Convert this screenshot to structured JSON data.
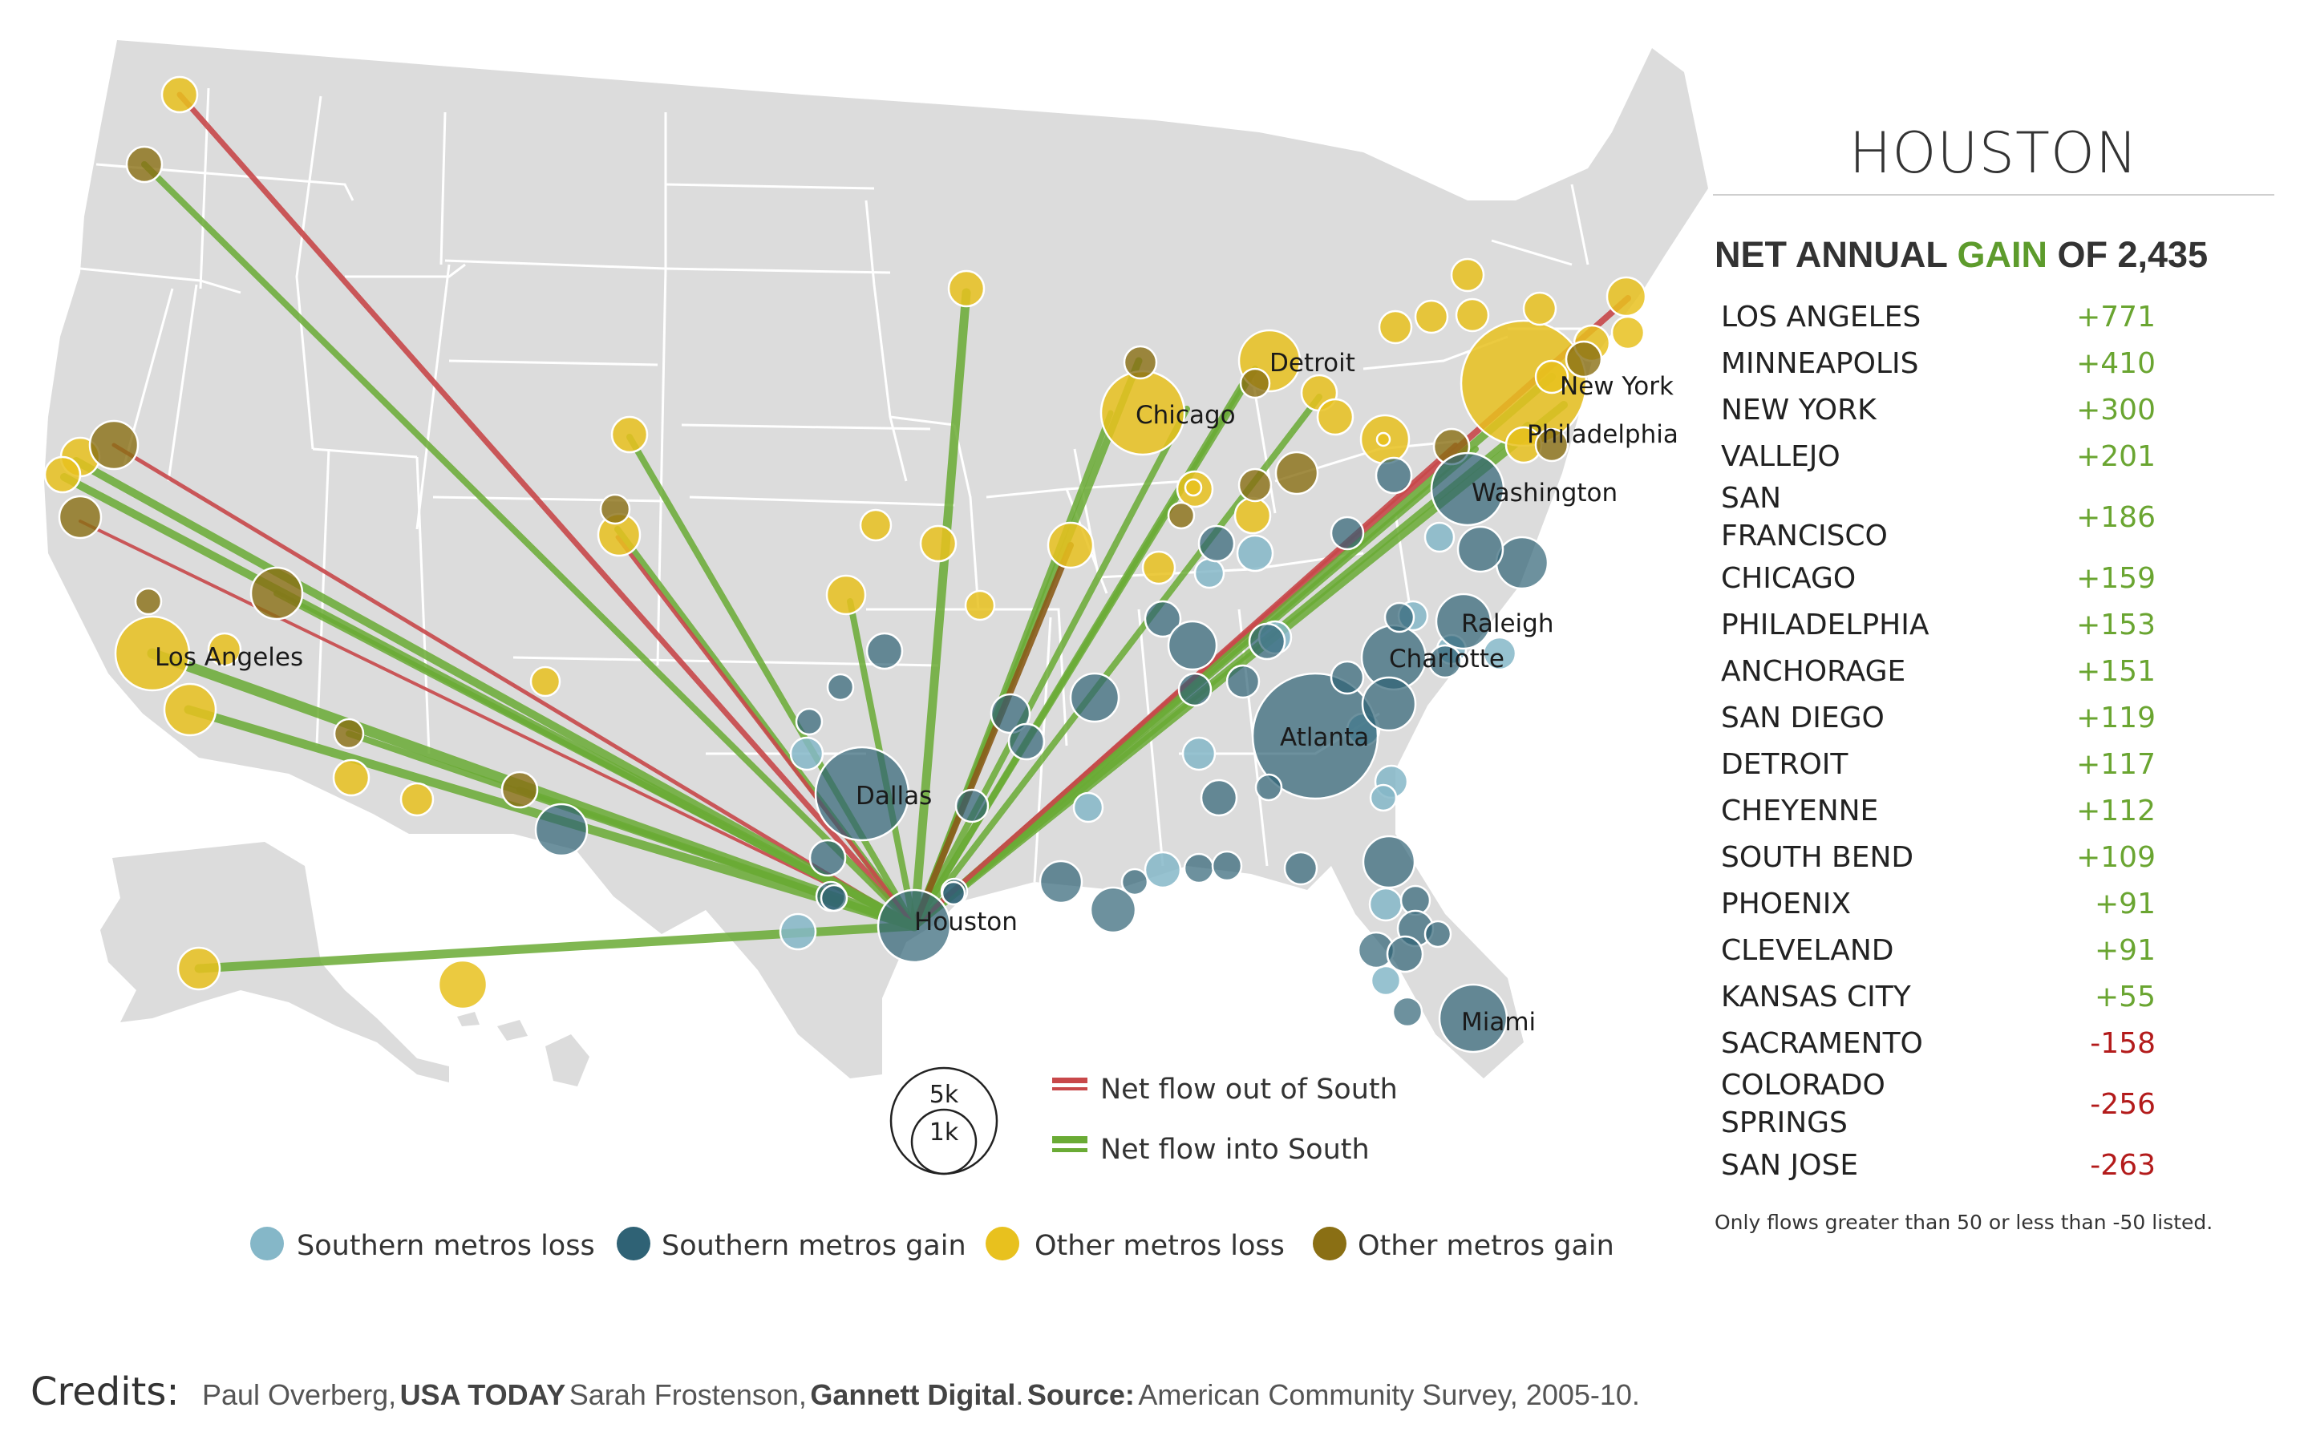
{
  "panel": {
    "title": "HOUSTON",
    "heading_prefix": "NET ANNUAL ",
    "heading_gain": "GAIN",
    "heading_suffix": " OF 2,435",
    "rows": [
      {
        "name": "LOS ANGELES",
        "value": "+771"
      },
      {
        "name": "MINNEAPOLIS",
        "value": "+410"
      },
      {
        "name": "NEW YORK",
        "value": "+300"
      },
      {
        "name": "VALLEJO",
        "value": "+201"
      },
      {
        "name": "SAN FRANCISCO",
        "value": "+186"
      },
      {
        "name": "CHICAGO",
        "value": "+159"
      },
      {
        "name": "PHILADELPHIA",
        "value": "+153"
      },
      {
        "name": "ANCHORAGE",
        "value": "+151"
      },
      {
        "name": "SAN DIEGO",
        "value": "+119"
      },
      {
        "name": "DETROIT",
        "value": "+117"
      },
      {
        "name": "CHEYENNE",
        "value": "+112"
      },
      {
        "name": "SOUTH BEND",
        "value": "+109"
      },
      {
        "name": "PHOENIX",
        "value": "+91"
      },
      {
        "name": "CLEVELAND",
        "value": "+91"
      },
      {
        "name": "KANSAS CITY",
        "value": "+55"
      },
      {
        "name": "SACRAMENTO",
        "value": "-158"
      },
      {
        "name": "COLORADO SPRINGS",
        "value": "-256"
      },
      {
        "name": "SAN JOSE",
        "value": "-263"
      }
    ],
    "note": "Only flows greater than 50 or less than -50 listed."
  },
  "map": {
    "city_labels": {
      "los_angeles": "Los Angeles",
      "dallas": "Dallas",
      "houston": "Houston",
      "chicago": "Chicago",
      "detroit": "Detroit",
      "new_york": "New York",
      "philadelphia": "Philadelphia",
      "washington": "Washington",
      "raleigh": "Raleigh",
      "charlotte": "Charlotte",
      "atlanta": "Atlanta",
      "miami": "Miami"
    }
  },
  "legend": {
    "flow_out": "Net flow out of South",
    "flow_in": "Net flow into South",
    "scale_large": "5k",
    "scale_small": "1k",
    "southern_loss": "Southern metros loss",
    "southern_gain": "Southern metros gain",
    "other_loss": "Other metros loss",
    "other_gain": "Other metros gain"
  },
  "colors": {
    "flow_out": "#c8484a",
    "flow_in": "#6aab35",
    "southern_loss": "#85b7c8",
    "southern_gain": "#2f6275",
    "other_loss": "#e8c11e",
    "other_gain": "#8a6f14",
    "land": "#dcdcdc",
    "border": "#ffffff"
  },
  "credits": {
    "label": "Credits:",
    "author1": "Paul Overberg,",
    "org1": "USA TODAY",
    "author2": "Sarah Frostenson,",
    "org2": "Gannett Digital",
    "source_label": "Source:",
    "source": "American Community Survey, 2005-10."
  }
}
